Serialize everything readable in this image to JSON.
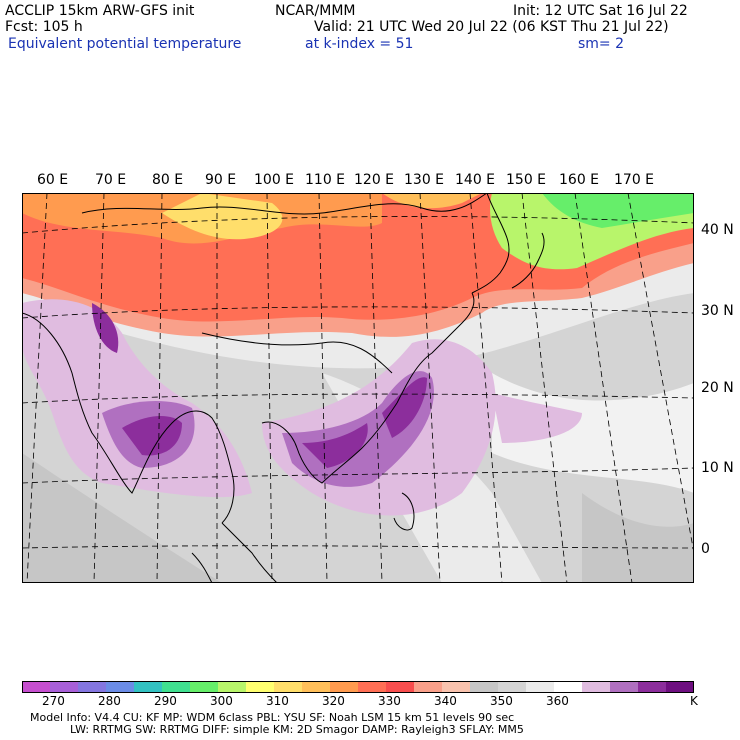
{
  "header": {
    "model": "ACCLIP 15km ARW-GFS init",
    "org": "NCAR/MMM",
    "init": "Init: 12 UTC Sat 16 Jul 22",
    "fcst": "Fcst:  105 h",
    "valid": "Valid: 21 UTC Wed 20 Jul 22 (06 KST Thu 21 Jul 22)",
    "field": "Equivalent potential temperature",
    "level": "at k-index =  51",
    "smooth": "sm= 2"
  },
  "map": {
    "lon_labels": [
      "60 E",
      "70 E",
      "80 E",
      "90 E",
      "100 E",
      "110 E",
      "120 E",
      "130 E",
      "140 E",
      "150 E",
      "160 E",
      "170 E"
    ],
    "lat_labels": [
      "40 N",
      "30 N",
      "20 N",
      "10 N",
      "0"
    ]
  },
  "colorbar": {
    "labels": [
      "270",
      "280",
      "290",
      "300",
      "310",
      "320",
      "330",
      "340",
      "350",
      "360"
    ],
    "unit": "K",
    "colors": [
      "#c64fcf",
      "#a860d8",
      "#8476e0",
      "#6b8ce6",
      "#33c2c2",
      "#40e090",
      "#66ee6a",
      "#b8f56b",
      "#ffff70",
      "#ffde6b",
      "#ffbf5a",
      "#ff9b4f",
      "#ff6f55",
      "#f84e4e",
      "#f9a08a",
      "#f9c3ae",
      "#c6c6c6",
      "#d4d4d4",
      "#ebebeb",
      "#ffffff",
      "#e0bce0",
      "#b070c0",
      "#8c2e9c",
      "#6e0f80"
    ]
  },
  "footer": {
    "line1": "Model Info: V4.4     CU: KF      MP: WDM 6class  PBL: YSU      SF: Noah LSM    15 km   51 levels   90 sec",
    "line2": "LW: RRTMG    SW: RRTMG   DIFF: simple KM: 2D Smagor DAMP: Rayleigh3  SFLAY: MM5"
  }
}
